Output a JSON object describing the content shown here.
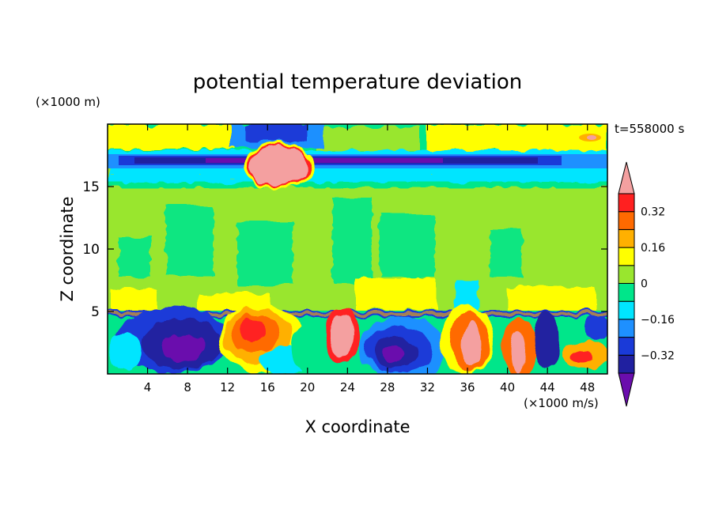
{
  "chart_data": {
    "type": "heatmap",
    "title": "potential temperature deviation",
    "xlabel": "X coordinate",
    "ylabel": "Z coordinate",
    "x_unit": "(×1000 m/s)",
    "y_unit": "(×1000 m)",
    "time_label": "t=558000 s",
    "xlim": [
      0,
      50
    ],
    "ylim": [
      0,
      20
    ],
    "xticks": [
      4,
      8,
      12,
      16,
      20,
      24,
      28,
      32,
      36,
      40,
      44,
      48
    ],
    "yticks": [
      5,
      10,
      15
    ],
    "colorbar": {
      "levels": [
        -0.4,
        -0.32,
        -0.24,
        -0.16,
        -0.08,
        0,
        0.08,
        0.16,
        0.24,
        0.32,
        0.4
      ],
      "colors": [
        "#6a0dad",
        "#2020a0",
        "#1a3ad8",
        "#1e90ff",
        "#00e5ff",
        "#00e68a",
        "#99e62e",
        "#ffff00",
        "#ffb000",
        "#ff6a00",
        "#ff2020",
        "#f4a0a0"
      ],
      "labels": [
        "0.32",
        "0.16",
        "0",
        "−0.16",
        "−0.32"
      ],
      "label_values": [
        0.32,
        0.16,
        0,
        -0.16,
        -0.32
      ]
    },
    "regions": [
      {
        "name": "stratosphere-top",
        "z": [
          18,
          20
        ],
        "level": "yellow-green"
      },
      {
        "name": "cold-band",
        "z": [
          16.5,
          17.5
        ],
        "level": "dark-blue"
      },
      {
        "name": "warm-blob",
        "x": [
          16,
          20
        ],
        "z": [
          15.5,
          18
        ],
        "level": "pink"
      },
      {
        "name": "free-troposphere",
        "z": [
          5,
          15
        ],
        "level": "light-green"
      },
      {
        "name": "boundary-layer",
        "z": [
          0,
          5
        ],
        "level": "mixed"
      }
    ]
  }
}
